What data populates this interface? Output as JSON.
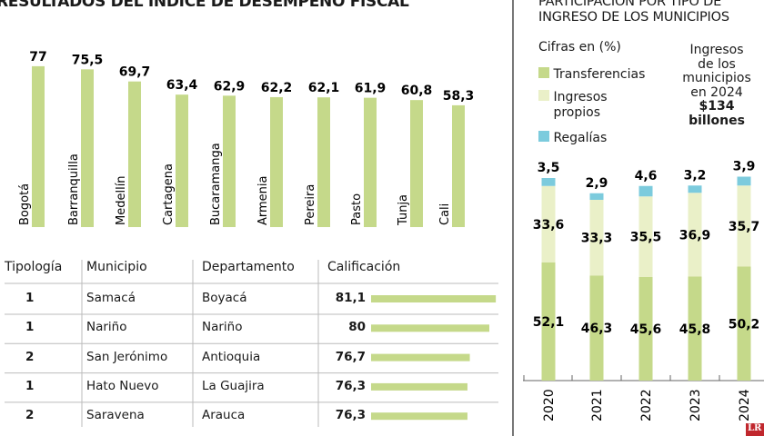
{
  "left": {
    "title": "RESULTADOS DEL ÍNDICE DE DESEMPEÑO FISCAL"
  },
  "chart_data": [
    {
      "type": "bar",
      "title": "RESULTADOS DEL ÍNDICE DE DESEMPEÑO FISCAL",
      "categories": [
        "Bogotá",
        "Barranquilla",
        "Medellín",
        "Cartagena",
        "Bucaramanga",
        "Armenia",
        "Pereira",
        "Pasto",
        "Tunja",
        "Cali"
      ],
      "values": [
        77,
        75.5,
        69.7,
        63.4,
        62.9,
        62.2,
        62.1,
        61.9,
        60.8,
        58.3
      ],
      "labels": [
        "77",
        "75,5",
        "69,7",
        "63,4",
        "62,9",
        "62,2",
        "62,1",
        "61,9",
        "60,8",
        "58,3"
      ],
      "color": "#c5d98a"
    },
    {
      "type": "table",
      "headers": [
        "Tipología",
        "Municipio",
        "Departamento",
        "Calificación"
      ],
      "rows": [
        {
          "tipologia": "1",
          "municipio": "Samacá",
          "departamento": "Boyacá",
          "calificacion": "81,1",
          "value": 81.1
        },
        {
          "tipologia": "1",
          "municipio": "Nariño",
          "departamento": "Nariño",
          "calificacion": "80",
          "value": 80
        },
        {
          "tipologia": "2",
          "municipio": "San Jerónimo",
          "departamento": "Antioquia",
          "calificacion": "76,7",
          "value": 76.7
        },
        {
          "tipologia": "1",
          "municipio": "Hato Nuevo",
          "departamento": "La Guajira",
          "calificacion": "76,3",
          "value": 76.3
        },
        {
          "tipologia": "2",
          "municipio": "Saravena",
          "departamento": "Arauca",
          "calificacion": "76,3",
          "value": 76.3
        }
      ]
    },
    {
      "type": "bar",
      "stacked": true,
      "title": "PARTICIPACIÓN POR TIPO DE INGRESO DE LOS MUNICIPIOS",
      "subtitle": "Cifras en (%)",
      "categories": [
        "2020",
        "2021",
        "2022",
        "2023",
        "2024"
      ],
      "series": [
        {
          "name": "Transferencias",
          "color": "#c5d98a",
          "values": [
            52.1,
            46.3,
            45.6,
            45.8,
            50.2
          ],
          "labels": [
            "52,1",
            "46,3",
            "45,6",
            "45,8",
            "50,2"
          ]
        },
        {
          "name": "Ingresos propios",
          "color": "#eaf0c8",
          "values": [
            33.6,
            33.3,
            35.5,
            36.9,
            35.7
          ],
          "labels": [
            "33,6",
            "33,3",
            "35,5",
            "36,9",
            "35,7"
          ]
        },
        {
          "name": "Regalías",
          "color": "#7ccbdd",
          "values": [
            3.5,
            2.9,
            4.6,
            3.2,
            3.9
          ],
          "labels": [
            "3,5",
            "2,9",
            "4,6",
            "3,2",
            "3,9"
          ]
        }
      ],
      "annotation": [
        "Ingresos",
        "de los",
        "municipios",
        "en 2024",
        "$134",
        "billones"
      ]
    }
  ],
  "right": {
    "title_line1": "PARTICIPACIÓN POR TIPO DE",
    "title_line2": "INGRESO DE LOS MUNICIPIOS",
    "subtitle": "Cifras en (%)",
    "legend": [
      "Transferencias",
      "Ingresos propios",
      "Regalías"
    ]
  },
  "logo": "LR"
}
